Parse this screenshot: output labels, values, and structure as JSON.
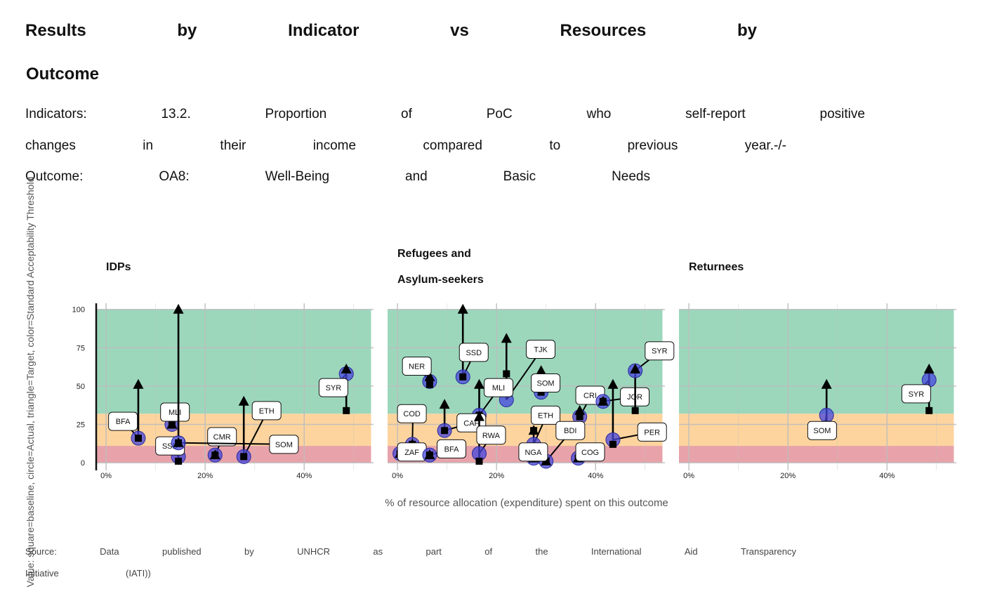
{
  "header": {
    "title_line1": [
      "Results",
      "by",
      "Indicator",
      "vs",
      "Resources",
      "by"
    ],
    "title_line2": "Outcome",
    "subtitle_line1": [
      "Indicators:",
      "13.2.",
      "Proportion",
      "of",
      "PoC",
      "who",
      "self-report",
      "positive"
    ],
    "subtitle_line2": [
      "changes",
      "in",
      "their",
      "income",
      "compared",
      "to",
      "previous",
      "year.-/-"
    ],
    "subtitle_line3": [
      "Outcome:",
      "OA8:",
      "Well-Being",
      "and",
      "Basic",
      "Needs"
    ]
  },
  "caption": {
    "line1": [
      "Source:",
      "Data",
      "published",
      "by",
      "UNHCR",
      "as",
      "part",
      "of",
      "the",
      "International",
      "Aid",
      "Transparency"
    ],
    "line2": [
      "Initiative",
      "(IATI))"
    ]
  },
  "chart_data": {
    "type": "scatter",
    "xlabel": "% of resource allocation (expenditure) spent on this outcome",
    "ylabel": "Value: square=baseline, circle=Actual, triangle=Target, color=Standard Acceptability Threshold",
    "xlim": [
      -2,
      54
    ],
    "ylim": [
      -5,
      104
    ],
    "x_ticks": [
      0,
      20,
      40
    ],
    "x_tick_labels": [
      "0%",
      "20%",
      "40%"
    ],
    "y_ticks": [
      0,
      25,
      50,
      75,
      100
    ],
    "y_tick_labels": [
      "0",
      "25",
      "50",
      "75",
      "100"
    ],
    "grid": true,
    "colors": {
      "red_band": "#E8A3AA",
      "orange_band": "#FDD49E",
      "green_band": "#9CD7BC",
      "point_fill": "#4646DC",
      "mark": "#000000",
      "grid": "#BDBDBD"
    },
    "threshold_bands": [
      {
        "from": 0,
        "to": 11,
        "color": "red"
      },
      {
        "from": 11,
        "to": 32,
        "color": "orange"
      },
      {
        "from": 32,
        "to": 100,
        "color": "green"
      }
    ],
    "panels": [
      {
        "title_lines": [
          "IDPs"
        ],
        "points": [
          {
            "label": "BFA",
            "x": 6.5,
            "baseline": 16,
            "actual": 16,
            "target": 51,
            "label_x": 0.5,
            "label_y": 27
          },
          {
            "label": "MLI",
            "x": 13.3,
            "baseline": 25,
            "actual": 25,
            "target": 25,
            "label_x": 11,
            "label_y": 33
          },
          {
            "label": "SSD",
            "x": 14.6,
            "baseline": 1,
            "actual": 4,
            "target": 100,
            "label_x": 10,
            "label_y": 11
          },
          {
            "label": "CMR",
            "x": 22,
            "baseline": 5,
            "actual": 5,
            "target": 5,
            "label_x": 20.5,
            "label_y": 17
          },
          {
            "label": "ETH",
            "x": 27.8,
            "baseline": 4,
            "actual": 4,
            "target": 40,
            "label_x": 29.5,
            "label_y": 34
          },
          {
            "label": "SOM",
            "x": 14.6,
            "baseline": 13,
            "actual": 13,
            "target": 13,
            "label_x": 33,
            "label_y": 12
          },
          {
            "label": "SYR",
            "x": 48.5,
            "baseline": 34,
            "actual": 58,
            "target": 61,
            "label_x": 43,
            "label_y": 49
          }
        ]
      },
      {
        "title_lines": [
          "Refugees and",
          "Asylum-seekers"
        ],
        "points": [
          {
            "label": "NER",
            "x": 6.5,
            "baseline": 51,
            "actual": 53,
            "target": 56,
            "label_x": 1,
            "label_y": 63
          },
          {
            "label": "SSD",
            "x": 13.2,
            "baseline": 56,
            "actual": 56,
            "target": 100,
            "label_x": 12.5,
            "label_y": 72
          },
          {
            "label": "TJK",
            "x": 22,
            "baseline": 58,
            "actual": 41,
            "target": 81,
            "label_x": 26,
            "label_y": 74
          },
          {
            "label": "SOM",
            "x": 29,
            "baseline": 46,
            "actual": 46,
            "target": 60,
            "label_x": 27,
            "label_y": 52
          },
          {
            "label": "MLI",
            "x": 16.5,
            "baseline": 31,
            "actual": 31,
            "target": 51,
            "label_x": 17.5,
            "label_y": 49
          },
          {
            "label": "CRI",
            "x": 36.8,
            "baseline": 30,
            "actual": 30,
            "target": 34,
            "label_x": 36,
            "label_y": 44
          },
          {
            "label": "JOR",
            "x": 41.5,
            "baseline": 40,
            "actual": 40,
            "target": 40,
            "label_x": 45,
            "label_y": 43
          },
          {
            "label": "SYR",
            "x": 48,
            "baseline": 34,
            "actual": 60,
            "target": 61,
            "label_x": 50,
            "label_y": 73
          },
          {
            "label": "COD",
            "x": 3,
            "baseline": 12,
            "actual": 12,
            "target": 12,
            "label_x": 0,
            "label_y": 32
          },
          {
            "label": "CAF",
            "x": 9.5,
            "baseline": 21,
            "actual": 21,
            "target": 38,
            "label_x": 12,
            "label_y": 26
          },
          {
            "label": "ETH",
            "x": 27.5,
            "baseline": 21,
            "actual": 12,
            "target": 21,
            "label_x": 27,
            "label_y": 31
          },
          {
            "label": "RWA",
            "x": 16.5,
            "baseline": 1,
            "actual": 6,
            "target": 30,
            "label_x": 16,
            "label_y": 18
          },
          {
            "label": "BDI",
            "x": 30,
            "baseline": 1,
            "actual": 1,
            "target": 1,
            "label_x": 32,
            "label_y": 21
          },
          {
            "label": "PER",
            "x": 43.5,
            "baseline": 12,
            "actual": 15,
            "target": 51,
            "label_x": 48.5,
            "label_y": 20
          },
          {
            "label": "ZAF",
            "x": 0.5,
            "baseline": 6,
            "actual": 6,
            "target": 6,
            "label_x": 0,
            "label_y": 7
          },
          {
            "label": "BFA",
            "x": 6.5,
            "baseline": 5,
            "actual": 5,
            "target": 5,
            "label_x": 8,
            "label_y": 9
          },
          {
            "label": "NGA",
            "x": 27.5,
            "baseline": 3,
            "actual": 3,
            "target": 3,
            "label_x": 24.5,
            "label_y": 7
          },
          {
            "label": "COG",
            "x": 36.5,
            "baseline": 3,
            "actual": 3,
            "target": 3,
            "label_x": 36,
            "label_y": 7
          }
        ]
      },
      {
        "title_lines": [
          "Returnees"
        ],
        "points": [
          {
            "label": "SOM",
            "x": 27.8,
            "baseline": 25,
            "actual": 31,
            "target": 51,
            "label_x": 24,
            "label_y": 21
          },
          {
            "label": "SYR",
            "x": 48.5,
            "baseline": 34,
            "actual": 54,
            "target": 61,
            "label_x": 43,
            "label_y": 45
          }
        ]
      }
    ]
  }
}
